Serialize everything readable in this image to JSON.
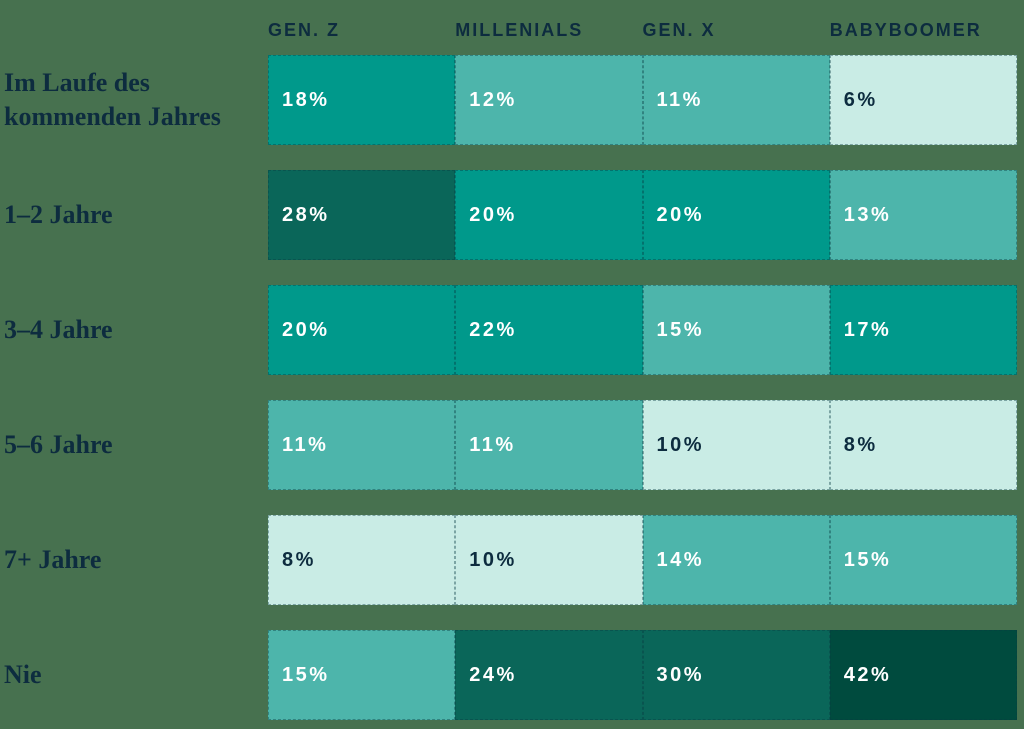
{
  "palette": {
    "background": "#47714F",
    "label_text": "#0D2C3F",
    "cell_text_light": "#FFFFFF"
  },
  "chart_data": {
    "type": "heatmap",
    "unit": "%",
    "columns": [
      "GEN. Z",
      "MILLENIALS",
      "GEN. X",
      "BABYBOOMER"
    ],
    "rows": [
      {
        "label": "Im Laufe des kommenden Jahres",
        "values": [
          18,
          12,
          11,
          6
        ]
      },
      {
        "label": "1–2 Jahre",
        "values": [
          28,
          20,
          20,
          13
        ]
      },
      {
        "label": "3–4 Jahre",
        "values": [
          20,
          22,
          15,
          17
        ]
      },
      {
        "label": "5–6 Jahre",
        "values": [
          11,
          11,
          10,
          8
        ]
      },
      {
        "label": "7+ Jahre",
        "values": [
          8,
          10,
          14,
          15
        ]
      },
      {
        "label": "Nie",
        "values": [
          15,
          24,
          30,
          42
        ]
      }
    ],
    "color_scale": {
      "levels": [
        "lightest",
        "light",
        "medium",
        "dark",
        "darkest"
      ],
      "thresholds": [
        11,
        17,
        24,
        40
      ],
      "colors": {
        "lightest": "#C9ECE5",
        "light": "#4DB5AB",
        "medium": "#00998B",
        "dark": "#0A6659",
        "darkest": "#004B3E"
      },
      "text_colors": {
        "lightest": "#0D2C3F",
        "light": "#FFFFFF",
        "medium": "#FFFFFF",
        "dark": "#FFFFFF",
        "darkest": "#FFFFFF"
      }
    },
    "legend": false,
    "grid": false
  }
}
